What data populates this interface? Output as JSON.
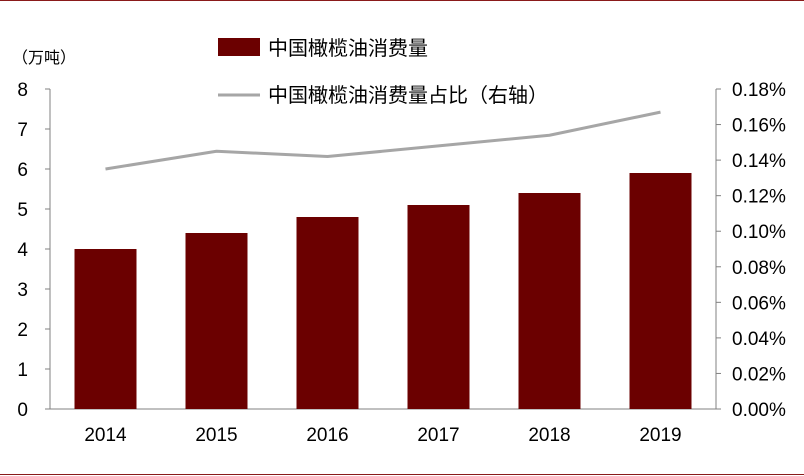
{
  "chart_data": {
    "type": "bar",
    "categories": [
      "2014",
      "2015",
      "2016",
      "2017",
      "2018",
      "2019"
    ],
    "series": [
      {
        "name": "中国橄榄油消费量",
        "type": "bar",
        "axis": "left",
        "values": [
          4.0,
          4.4,
          4.8,
          5.1,
          5.4,
          5.9
        ]
      },
      {
        "name": "中国橄榄油消费量占比（右轴）",
        "type": "line",
        "axis": "right",
        "values": [
          0.135,
          0.145,
          0.142,
          0.148,
          0.154,
          0.167
        ]
      }
    ],
    "y_left": {
      "unit_label": "（万吨）",
      "min": 0,
      "max": 8,
      "ticks": [
        "0",
        "1",
        "2",
        "3",
        "4",
        "5",
        "6",
        "7",
        "8"
      ]
    },
    "y_right": {
      "min": 0,
      "max": 0.18,
      "ticks": [
        "0.00%",
        "0.02%",
        "0.04%",
        "0.06%",
        "0.08%",
        "0.10%",
        "0.12%",
        "0.14%",
        "0.16%",
        "0.18%"
      ]
    },
    "grid": false,
    "legend_placement": "top-left",
    "colors": {
      "bar": "#6b0000",
      "line": "#a6a6a6",
      "frame": "#8a1a1a"
    }
  }
}
